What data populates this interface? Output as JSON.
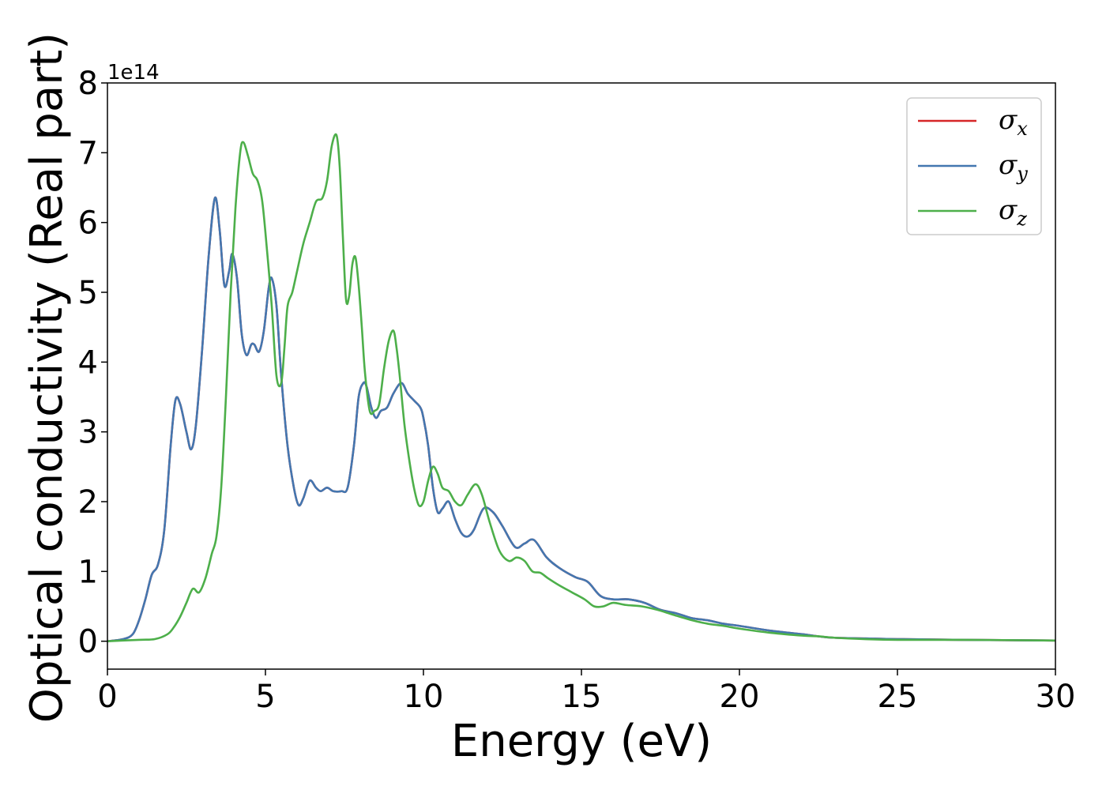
{
  "chart_data": {
    "type": "line",
    "title": "",
    "xlabel": "Energy (eV)",
    "ylabel": "Optical conductivity (Real part)",
    "y_offset_label": "1e14",
    "xlim": [
      0,
      30
    ],
    "ylim": [
      -0.4,
      8
    ],
    "x_ticks": [
      "0",
      "5",
      "10",
      "15",
      "20",
      "25",
      "30"
    ],
    "y_ticks": [
      "0",
      "1",
      "2",
      "3",
      "4",
      "5",
      "6",
      "7",
      "8"
    ],
    "grid": false,
    "legend_position": "top-right",
    "series": [
      {
        "name": "σ",
        "subscript": "x",
        "color": "#d62728",
        "x": [
          0,
          0.5,
          0.8,
          1.0,
          1.2,
          1.4,
          1.6,
          1.8,
          2.0,
          2.15,
          2.3,
          2.5,
          2.65,
          2.8,
          3.0,
          3.2,
          3.4,
          3.55,
          3.7,
          3.85,
          3.95,
          4.1,
          4.25,
          4.4,
          4.55,
          4.65,
          4.8,
          4.95,
          5.1,
          5.2,
          5.35,
          5.5,
          5.7,
          5.9,
          6.05,
          6.2,
          6.4,
          6.6,
          6.75,
          6.95,
          7.15,
          7.4,
          7.6,
          7.8,
          7.95,
          8.1,
          8.2,
          8.35,
          8.5,
          8.65,
          8.85,
          9.05,
          9.3,
          9.5,
          9.7,
          9.9,
          10.0,
          10.15,
          10.3,
          10.45,
          10.6,
          10.8,
          11.0,
          11.2,
          11.4,
          11.6,
          11.9,
          12.2,
          12.5,
          12.9,
          13.2,
          13.5,
          13.9,
          14.3,
          14.8,
          15.2,
          15.6,
          16.0,
          16.5,
          17.0,
          17.5,
          18.0,
          18.5,
          19.0,
          19.5,
          20.0,
          21.0,
          22.0,
          22.5,
          23.0,
          24.0,
          25.0,
          27.0,
          30.0
        ],
        "y": [
          0.0,
          0.03,
          0.1,
          0.3,
          0.6,
          0.95,
          1.1,
          1.6,
          2.8,
          3.45,
          3.4,
          3.0,
          2.75,
          3.1,
          4.2,
          5.5,
          6.35,
          5.9,
          5.1,
          5.3,
          5.55,
          5.2,
          4.4,
          4.1,
          4.25,
          4.25,
          4.15,
          4.45,
          5.05,
          5.2,
          4.8,
          3.8,
          2.8,
          2.2,
          1.95,
          2.05,
          2.3,
          2.2,
          2.15,
          2.2,
          2.15,
          2.15,
          2.2,
          2.8,
          3.5,
          3.7,
          3.65,
          3.35,
          3.2,
          3.3,
          3.35,
          3.55,
          3.7,
          3.55,
          3.45,
          3.35,
          3.2,
          2.8,
          2.2,
          1.85,
          1.9,
          2.0,
          1.75,
          1.55,
          1.5,
          1.6,
          1.9,
          1.85,
          1.65,
          1.35,
          1.4,
          1.45,
          1.2,
          1.05,
          0.92,
          0.85,
          0.65,
          0.6,
          0.6,
          0.55,
          0.45,
          0.4,
          0.33,
          0.3,
          0.25,
          0.22,
          0.15,
          0.1,
          0.07,
          0.05,
          0.04,
          0.03,
          0.02,
          0.01
        ]
      },
      {
        "name": "σ",
        "subscript": "y",
        "color": "#4377b0",
        "x": [
          0,
          0.5,
          0.8,
          1.0,
          1.2,
          1.4,
          1.6,
          1.8,
          2.0,
          2.15,
          2.3,
          2.5,
          2.65,
          2.8,
          3.0,
          3.2,
          3.4,
          3.55,
          3.7,
          3.85,
          3.95,
          4.1,
          4.25,
          4.4,
          4.55,
          4.65,
          4.8,
          4.95,
          5.1,
          5.2,
          5.35,
          5.5,
          5.7,
          5.9,
          6.05,
          6.2,
          6.4,
          6.6,
          6.75,
          6.95,
          7.15,
          7.4,
          7.6,
          7.8,
          7.95,
          8.1,
          8.2,
          8.35,
          8.5,
          8.65,
          8.85,
          9.05,
          9.3,
          9.5,
          9.7,
          9.9,
          10.0,
          10.15,
          10.3,
          10.45,
          10.6,
          10.8,
          11.0,
          11.2,
          11.4,
          11.6,
          11.9,
          12.2,
          12.5,
          12.9,
          13.2,
          13.5,
          13.9,
          14.3,
          14.8,
          15.2,
          15.6,
          16.0,
          16.5,
          17.0,
          17.5,
          18.0,
          18.5,
          19.0,
          19.5,
          20.0,
          21.0,
          22.0,
          22.5,
          23.0,
          24.0,
          25.0,
          27.0,
          30.0
        ],
        "y": [
          0.0,
          0.03,
          0.1,
          0.3,
          0.6,
          0.95,
          1.1,
          1.6,
          2.8,
          3.45,
          3.4,
          3.0,
          2.75,
          3.1,
          4.2,
          5.5,
          6.35,
          5.9,
          5.1,
          5.3,
          5.55,
          5.2,
          4.4,
          4.1,
          4.25,
          4.25,
          4.15,
          4.45,
          5.05,
          5.2,
          4.8,
          3.8,
          2.8,
          2.2,
          1.95,
          2.05,
          2.3,
          2.2,
          2.15,
          2.2,
          2.15,
          2.15,
          2.2,
          2.8,
          3.5,
          3.7,
          3.65,
          3.35,
          3.2,
          3.3,
          3.35,
          3.55,
          3.7,
          3.55,
          3.45,
          3.35,
          3.2,
          2.8,
          2.2,
          1.85,
          1.9,
          2.0,
          1.75,
          1.55,
          1.5,
          1.6,
          1.9,
          1.85,
          1.65,
          1.35,
          1.4,
          1.45,
          1.2,
          1.05,
          0.92,
          0.85,
          0.65,
          0.6,
          0.6,
          0.55,
          0.45,
          0.4,
          0.33,
          0.3,
          0.25,
          0.22,
          0.15,
          0.1,
          0.07,
          0.05,
          0.04,
          0.03,
          0.02,
          0.01
        ]
      },
      {
        "name": "σ",
        "subscript": "z",
        "color": "#4daf4a",
        "x": [
          0,
          1.0,
          1.5,
          1.9,
          2.1,
          2.3,
          2.5,
          2.7,
          2.9,
          3.1,
          3.3,
          3.45,
          3.6,
          3.75,
          3.9,
          4.05,
          4.2,
          4.3,
          4.45,
          4.6,
          4.75,
          4.9,
          5.05,
          5.2,
          5.35,
          5.5,
          5.6,
          5.7,
          5.85,
          6.0,
          6.2,
          6.4,
          6.6,
          6.8,
          6.95,
          7.1,
          7.25,
          7.35,
          7.45,
          7.55,
          7.65,
          7.75,
          7.85,
          7.95,
          8.05,
          8.15,
          8.3,
          8.45,
          8.6,
          8.75,
          8.9,
          9.05,
          9.15,
          9.25,
          9.4,
          9.55,
          9.7,
          9.85,
          10.0,
          10.15,
          10.3,
          10.45,
          10.6,
          10.8,
          11.0,
          11.2,
          11.4,
          11.65,
          11.85,
          12.1,
          12.4,
          12.7,
          12.95,
          13.2,
          13.45,
          13.7,
          13.95,
          14.3,
          14.7,
          15.1,
          15.4,
          15.7,
          16.0,
          16.4,
          16.9,
          17.4,
          17.9,
          18.5,
          19.0,
          19.5,
          20.0,
          21.0,
          22.0,
          22.5,
          23.0,
          24.0,
          25.0,
          27.0,
          30.0
        ],
        "y": [
          0.0,
          0.02,
          0.03,
          0.1,
          0.2,
          0.35,
          0.55,
          0.75,
          0.7,
          0.9,
          1.25,
          1.5,
          2.2,
          3.5,
          5.0,
          6.2,
          7.0,
          7.15,
          6.95,
          6.7,
          6.6,
          6.3,
          5.6,
          4.8,
          3.8,
          3.7,
          4.2,
          4.8,
          5.0,
          5.3,
          5.7,
          6.0,
          6.3,
          6.35,
          6.6,
          7.1,
          7.25,
          6.8,
          5.8,
          4.9,
          4.95,
          5.4,
          5.5,
          5.1,
          4.5,
          3.85,
          3.3,
          3.3,
          3.4,
          3.9,
          4.3,
          4.45,
          4.2,
          3.8,
          3.1,
          2.6,
          2.2,
          1.95,
          2.0,
          2.3,
          2.5,
          2.4,
          2.2,
          2.15,
          2.0,
          1.95,
          2.1,
          2.25,
          2.1,
          1.7,
          1.3,
          1.15,
          1.2,
          1.15,
          1.0,
          0.98,
          0.9,
          0.8,
          0.7,
          0.6,
          0.5,
          0.5,
          0.55,
          0.52,
          0.5,
          0.45,
          0.38,
          0.3,
          0.25,
          0.22,
          0.18,
          0.12,
          0.08,
          0.07,
          0.05,
          0.03,
          0.02,
          0.02,
          0.01
        ]
      }
    ]
  }
}
